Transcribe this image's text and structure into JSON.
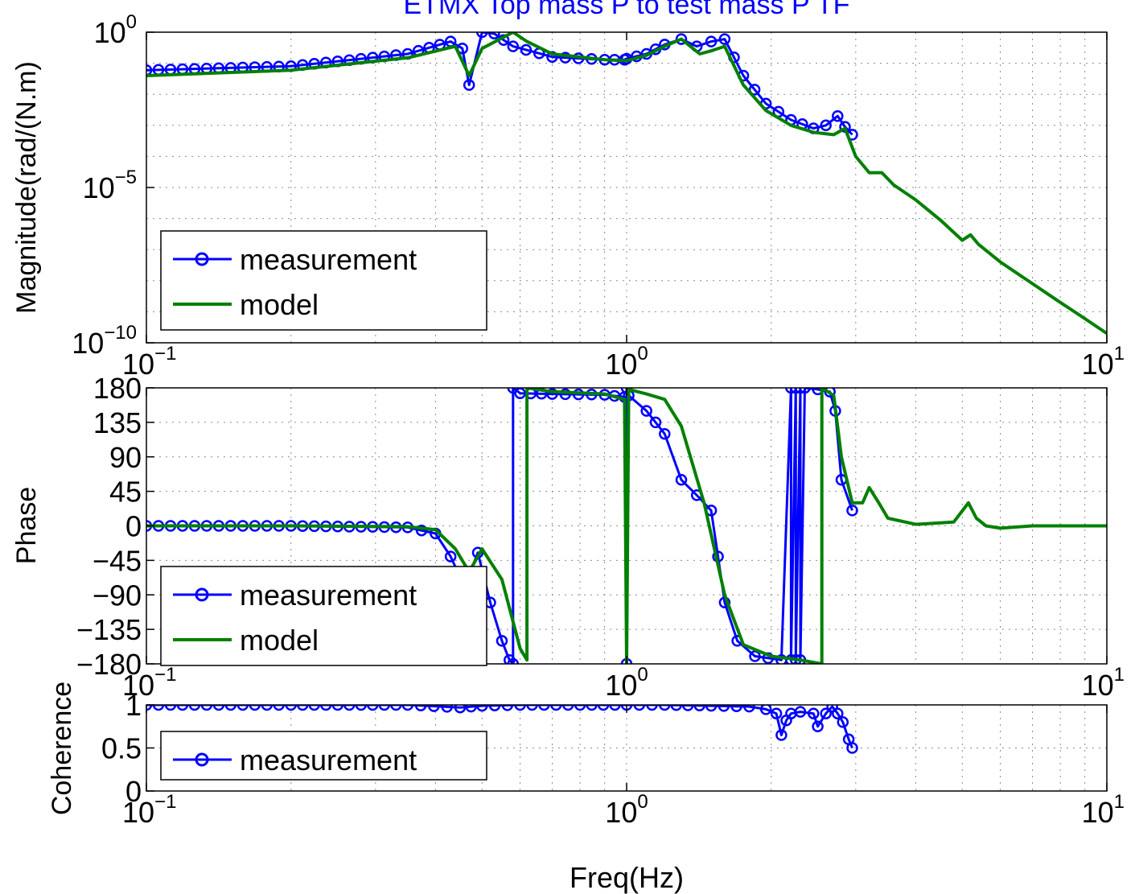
{
  "colors": {
    "measurement": "#0000ff",
    "model": "#008000",
    "grid": "#8c8c8c",
    "title": "#0000ff"
  },
  "chart_data": [
    {
      "type": "line",
      "title": "ETMX Top mass P to test mass P TF",
      "xlabel": "",
      "ylabel": "Magnitude(rad/(N.m)",
      "x_scale": "log",
      "y_scale": "log",
      "xlim": [
        0.1,
        10
      ],
      "ylim": [
        1e-10,
        1
      ],
      "grid": true,
      "legend_position": "bottom-left",
      "x_tick_labels": [
        {
          "base": "10",
          "exp": "−1"
        },
        {
          "base": "10",
          "exp": "0"
        },
        {
          "base": "10",
          "exp": "1"
        }
      ],
      "y_tick_labels": [
        {
          "base": "10",
          "exp": "−10",
          "value": 1e-10
        },
        {
          "base": "10",
          "exp": "−5",
          "value": 1e-05
        },
        {
          "base": "10",
          "exp": "0",
          "value": 1
        }
      ],
      "series": [
        {
          "name": "measurement",
          "marker": "circle",
          "x": [
            0.1,
            0.2,
            0.35,
            0.43,
            0.455,
            0.47,
            0.5,
            0.53,
            0.58,
            0.7,
            0.9,
            0.99,
            1.0,
            1.1,
            1.2,
            1.3,
            1.4,
            1.5,
            1.6,
            1.75,
            1.95,
            2.2,
            2.45,
            2.6,
            2.75,
            2.85,
            2.95
          ],
          "y": [
            0.06,
            0.08,
            0.2,
            0.5,
            0.3,
            0.02,
            1.0,
            0.9,
            0.35,
            0.16,
            0.13,
            0.13,
            0.14,
            0.2,
            0.4,
            0.6,
            0.35,
            0.5,
            0.6,
            0.04,
            0.005,
            0.0015,
            0.0008,
            0.001,
            0.002,
            0.0009,
            0.0005
          ]
        },
        {
          "name": "model",
          "x": [
            0.1,
            0.2,
            0.35,
            0.44,
            0.47,
            0.5,
            0.58,
            0.62,
            0.7,
            0.9,
            1.0,
            1.1,
            1.2,
            1.3,
            1.42,
            1.5,
            1.6,
            1.75,
            1.95,
            2.2,
            2.45,
            2.7,
            2.85,
            3.0,
            3.2,
            3.4,
            3.6,
            4.0,
            4.5,
            5.0,
            5.2,
            5.4,
            6.0,
            7.0,
            8.0,
            9.0,
            10.0
          ],
          "y": [
            0.04,
            0.06,
            0.15,
            0.35,
            0.04,
            0.3,
            1.0,
            0.5,
            0.2,
            0.13,
            0.12,
            0.18,
            0.35,
            0.6,
            0.2,
            0.25,
            0.35,
            0.02,
            0.003,
            0.001,
            0.0006,
            0.0005,
            0.0008,
            0.0001,
            3e-05,
            3e-05,
            1.2e-05,
            4e-06,
            9e-07,
            2e-07,
            3e-07,
            1.5e-07,
            4e-08,
            8e-09,
            2e-09,
            6e-10,
            2e-10
          ]
        }
      ]
    },
    {
      "type": "line",
      "title": "",
      "xlabel": "",
      "ylabel": "Phase",
      "x_scale": "log",
      "xlim": [
        0.1,
        10
      ],
      "ylim": [
        -180,
        180
      ],
      "yticks": [
        -180,
        -135,
        -90,
        -45,
        0,
        45,
        90,
        135,
        180
      ],
      "y_tick_labels": [
        "−180",
        "−135",
        "−90",
        "−45",
        "0",
        "45",
        "90",
        "135",
        "180"
      ],
      "grid": true,
      "legend_position": "bottom-left",
      "x_tick_labels": [
        {
          "base": "10",
          "exp": "−1"
        },
        {
          "base": "10",
          "exp": "0"
        },
        {
          "base": "10",
          "exp": "1"
        }
      ],
      "series": [
        {
          "name": "measurement",
          "marker": "circle",
          "x": [
            0.1,
            0.2,
            0.35,
            0.4,
            0.43,
            0.46,
            0.49,
            0.52,
            0.55,
            0.57,
            0.58,
            0.58,
            0.6,
            0.7,
            0.9,
            0.99,
            1.0,
            1.0,
            1.01,
            1.1,
            1.2,
            1.3,
            1.4,
            1.5,
            1.55,
            1.6,
            1.7,
            1.85,
            2.1,
            2.2,
            2.2,
            2.25,
            2.25,
            2.3,
            2.3,
            2.35,
            2.35,
            2.5,
            2.65,
            2.72,
            2.8,
            2.95
          ],
          "y": [
            0,
            0,
            -2,
            -10,
            -40,
            -80,
            -35,
            -100,
            -150,
            -175,
            -180,
            180,
            173,
            172,
            171,
            168,
            -180,
            180,
            170,
            150,
            120,
            60,
            40,
            20,
            -40,
            -100,
            -150,
            -170,
            -175,
            180,
            -175,
            180,
            -175,
            180,
            -175,
            180,
            180,
            178,
            175,
            150,
            60,
            20
          ]
        },
        {
          "name": "model",
          "x": [
            0.1,
            0.2,
            0.35,
            0.4,
            0.44,
            0.47,
            0.5,
            0.55,
            0.6,
            0.62,
            0.62,
            0.7,
            0.9,
            0.99,
            1.0,
            1.01,
            1.1,
            1.2,
            1.3,
            1.45,
            1.6,
            1.75,
            2.0,
            2.3,
            2.55,
            2.55,
            2.7,
            2.8,
            2.95,
            3.1,
            3.2,
            3.35,
            3.5,
            4.0,
            4.8,
            5.15,
            5.35,
            5.6,
            6.0,
            7.0,
            10.0
          ],
          "y": [
            0,
            0,
            -1,
            -5,
            -30,
            -60,
            -30,
            -70,
            -160,
            -175,
            180,
            175,
            172,
            165,
            -180,
            178,
            172,
            165,
            130,
            30,
            -90,
            -155,
            -170,
            -175,
            -180,
            180,
            170,
            90,
            30,
            30,
            50,
            30,
            10,
            2,
            5,
            30,
            10,
            0,
            -3,
            0,
            0
          ]
        }
      ]
    },
    {
      "type": "line",
      "title": "",
      "xlabel": "Freq(Hz)",
      "ylabel": "Coherence",
      "x_scale": "log",
      "xlim": [
        0.1,
        10
      ],
      "ylim": [
        0,
        1
      ],
      "yticks": [
        0,
        0.5,
        1
      ],
      "y_tick_labels": [
        "0",
        "0.5",
        "1"
      ],
      "grid": true,
      "legend_position": "bottom-left",
      "x_tick_labels": [
        {
          "base": "10",
          "exp": "−1"
        },
        {
          "base": "10",
          "exp": "0"
        },
        {
          "base": "10",
          "exp": "1"
        }
      ],
      "series": [
        {
          "name": "measurement",
          "marker": "circle",
          "x": [
            0.1,
            0.2,
            0.35,
            0.45,
            0.5,
            0.6,
            0.8,
            1.0,
            1.2,
            1.5,
            1.8,
            1.95,
            2.05,
            2.1,
            2.15,
            2.2,
            2.3,
            2.45,
            2.5,
            2.6,
            2.68,
            2.75,
            2.82,
            2.9,
            2.95
          ],
          "y": [
            1,
            1,
            1,
            0.97,
            0.99,
            1,
            1,
            1,
            1,
            0.99,
            0.98,
            0.95,
            0.9,
            0.65,
            0.82,
            0.9,
            0.92,
            0.9,
            0.75,
            0.9,
            0.98,
            0.9,
            0.8,
            0.6,
            0.5
          ]
        }
      ]
    }
  ]
}
